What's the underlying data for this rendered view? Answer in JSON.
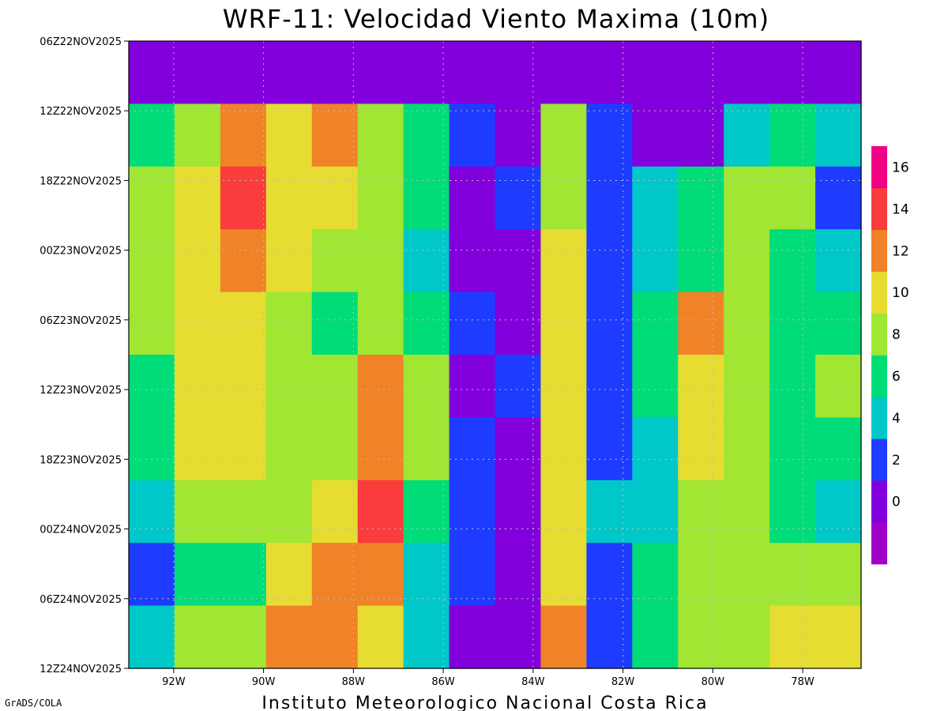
{
  "chart_data": {
    "type": "heatmap",
    "title": "WRF-11: Velocidad  Viento Maxima (10m)",
    "footer": "Instituto Meteorologico Nacional Costa Rica",
    "credit": "GrADS/COLA",
    "x_axis": {
      "range": [
        -93.0,
        -76.7
      ],
      "ticks": [
        -92,
        -90,
        -88,
        -86,
        -84,
        -82,
        -80,
        -78
      ],
      "tick_labels": [
        "92W",
        "90W",
        "88W",
        "86W",
        "84W",
        "82W",
        "80W",
        "78W"
      ]
    },
    "y_axis": {
      "ticks": [
        "06Z22NOV2025",
        "12Z22NOV2025",
        "18Z22NOV2025",
        "00Z23NOV2025",
        "06Z23NOV2025",
        "12Z23NOV2025",
        "18Z23NOV2025",
        "00Z24NOV2025",
        "06Z24NOV2025",
        "12Z24NOV2025"
      ]
    },
    "grid": true,
    "legend": {
      "placement": "right",
      "levels": [
        0,
        2,
        4,
        6,
        8,
        10,
        12,
        14,
        16
      ],
      "tick_labels": [
        "0",
        "2",
        "4",
        "6",
        "8",
        "10",
        "12",
        "14",
        "16"
      ],
      "colors": [
        "#a000c8",
        "#8200dc",
        "#1e3cff",
        "#00c8c8",
        "#00dc78",
        "#a0e632",
        "#e6dc32",
        "#f08228",
        "#fa3c3c",
        "#f00082"
      ]
    },
    "values_by_time": [
      [
        0,
        0,
        0,
        0,
        0,
        0,
        0,
        0,
        0,
        0,
        0,
        0,
        0,
        0,
        0,
        0
      ],
      [
        7,
        9,
        13,
        11,
        13,
        9,
        7,
        3,
        1,
        9,
        3,
        1,
        1,
        5,
        7,
        5
      ],
      [
        9,
        11,
        15,
        11,
        11,
        9,
        7,
        1,
        3,
        9,
        3,
        5,
        7,
        9,
        9,
        3
      ],
      [
        9,
        11,
        13,
        11,
        9,
        9,
        5,
        1,
        1,
        11,
        3,
        5,
        7,
        9,
        7,
        5
      ],
      [
        9,
        11,
        11,
        9,
        7,
        9,
        7,
        3,
        1,
        11,
        3,
        7,
        13,
        9,
        7,
        7
      ],
      [
        7,
        11,
        11,
        9,
        9,
        13,
        9,
        1,
        3,
        11,
        3,
        7,
        11,
        9,
        7,
        9
      ],
      [
        7,
        11,
        11,
        9,
        9,
        13,
        9,
        3,
        1,
        11,
        3,
        5,
        11,
        9,
        7,
        7
      ],
      [
        5,
        9,
        9,
        9,
        11,
        15,
        7,
        3,
        1,
        11,
        5,
        5,
        9,
        9,
        7,
        5
      ],
      [
        3,
        7,
        7,
        11,
        13,
        13,
        5,
        3,
        1,
        11,
        3,
        7,
        9,
        9,
        9,
        9
      ],
      [
        5,
        9,
        9,
        13,
        13,
        11,
        5,
        1,
        1,
        13,
        3,
        7,
        9,
        9,
        11,
        11
      ]
    ]
  }
}
